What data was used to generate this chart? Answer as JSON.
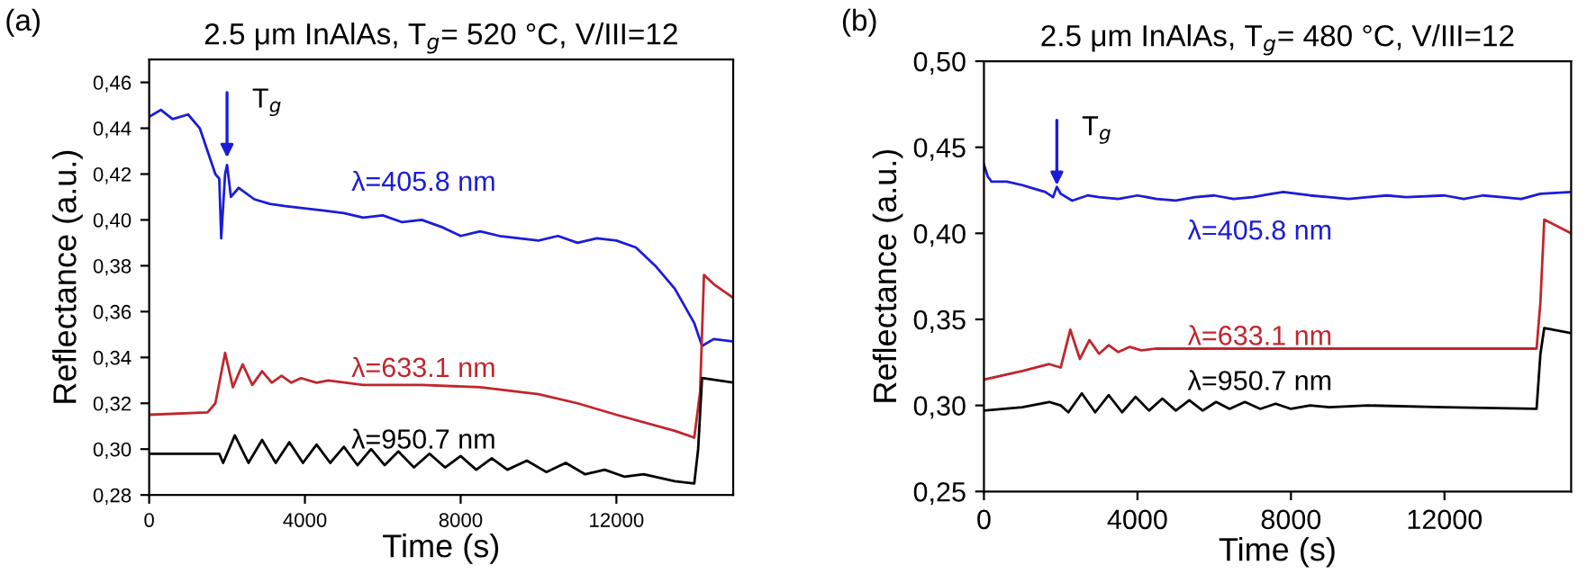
{
  "chart_data": [
    {
      "type": "line",
      "title": "2.5 μm InAlAs, T$_{g}$= 520 °C, V/III=12",
      "xlabel": "Time (s)",
      "ylabel": "Reflectance (a.u.)",
      "xlim": [
        0,
        15000
      ],
      "xticks": [
        0,
        4000,
        8000,
        12000
      ],
      "ylim": [
        0.28,
        0.47
      ],
      "yticks": [
        {
          "value": 0.28,
          "label": "0,28"
        },
        {
          "value": 0.3,
          "label": "0,30"
        },
        {
          "value": 0.32,
          "label": "0,32"
        },
        {
          "value": 0.34,
          "label": "0,34"
        },
        {
          "value": 0.36,
          "label": "0,36"
        },
        {
          "value": 0.38,
          "label": "0,38"
        },
        {
          "value": 0.4,
          "label": "0,40"
        },
        {
          "value": 0.42,
          "label": "0,42"
        },
        {
          "value": 0.44,
          "label": "0,44"
        },
        {
          "value": 0.46,
          "label": "0,46"
        }
      ],
      "grid": false,
      "legend": false,
      "marker": "none",
      "line_style": "solid",
      "annotations": [
        "(a)",
        {
          "text": "T$_{g}$",
          "x": 2000,
          "y": 0.425
        }
      ],
      "series": [
        {
          "name": "λ=405.8 nm",
          "color": "#1c1cd8",
          "x": [
            0,
            300,
            600,
            1000,
            1300,
            1500,
            1700,
            1800,
            1850,
            1950,
            2000,
            2100,
            2300,
            2700,
            3100,
            3500,
            4000,
            4500,
            5000,
            5500,
            6000,
            6500,
            7000,
            7500,
            8000,
            8500,
            9000,
            9500,
            10000,
            10500,
            11000,
            11500,
            12000,
            12500,
            13000,
            13500,
            14000,
            14200,
            14500,
            15000
          ],
          "values": [
            0.445,
            0.448,
            0.444,
            0.446,
            0.44,
            0.43,
            0.42,
            0.418,
            0.392,
            0.42,
            0.424,
            0.41,
            0.414,
            0.409,
            0.407,
            0.406,
            0.405,
            0.404,
            0.403,
            0.401,
            0.402,
            0.399,
            0.4,
            0.397,
            0.393,
            0.395,
            0.393,
            0.392,
            0.391,
            0.393,
            0.39,
            0.392,
            0.391,
            0.388,
            0.38,
            0.37,
            0.355,
            0.345,
            0.348,
            0.347
          ]
        },
        {
          "name": "λ=633.1 nm",
          "color": "#c0262d",
          "x": [
            0,
            1500,
            1700,
            1950,
            2150,
            2400,
            2650,
            2900,
            3150,
            3400,
            3650,
            3900,
            4300,
            4600,
            5500,
            7000,
            8500,
            10000,
            11000,
            12000,
            13500,
            14000,
            14150,
            14250,
            14500,
            15000
          ],
          "values": [
            0.315,
            0.316,
            0.32,
            0.342,
            0.327,
            0.337,
            0.328,
            0.334,
            0.329,
            0.332,
            0.329,
            0.331,
            0.329,
            0.33,
            0.328,
            0.328,
            0.327,
            0.324,
            0.32,
            0.315,
            0.308,
            0.305,
            0.325,
            0.376,
            0.372,
            0.366
          ]
        },
        {
          "name": "λ=950.7 nm",
          "color": "#000000",
          "x": [
            0,
            1800,
            1900,
            2200,
            2550,
            2900,
            3250,
            3600,
            3950,
            4300,
            4650,
            5000,
            5350,
            5700,
            6050,
            6400,
            6800,
            7200,
            7600,
            8000,
            8400,
            8800,
            9200,
            9700,
            10200,
            10700,
            11200,
            11700,
            12200,
            12700,
            13500,
            14000,
            14100,
            14200,
            15000
          ],
          "values": [
            0.298,
            0.298,
            0.294,
            0.306,
            0.294,
            0.304,
            0.294,
            0.303,
            0.294,
            0.302,
            0.294,
            0.301,
            0.293,
            0.3,
            0.293,
            0.299,
            0.292,
            0.298,
            0.292,
            0.297,
            0.291,
            0.296,
            0.291,
            0.295,
            0.29,
            0.294,
            0.289,
            0.291,
            0.288,
            0.289,
            0.286,
            0.285,
            0.3,
            0.331,
            0.329
          ]
        }
      ]
    },
    {
      "type": "line",
      "title": "2.5 μm InAlAs, T$_{g}$= 480 °C, V/III=12",
      "xlabel": "Time (s)",
      "ylabel": "Reflectance (a.u.)",
      "xlim": [
        0,
        15300
      ],
      "xticks": [
        0,
        4000,
        8000,
        12000
      ],
      "ylim": [
        0.25,
        0.5
      ],
      "yticks": [
        {
          "value": 0.25,
          "label": "0,25"
        },
        {
          "value": 0.3,
          "label": "0,30"
        },
        {
          "value": 0.35,
          "label": "0,35"
        },
        {
          "value": 0.4,
          "label": "0,40"
        },
        {
          "value": 0.45,
          "label": "0,45"
        },
        {
          "value": 0.5,
          "label": "0,50"
        }
      ],
      "grid": false,
      "legend": false,
      "marker": "none",
      "line_style": "solid",
      "annotations": [
        "(b)",
        {
          "text": "T$_{g}$",
          "x": 1900,
          "y": 0.425
        }
      ],
      "series": [
        {
          "name": "λ=405.8 nm",
          "color": "#1c1cd8",
          "x": [
            0,
            100,
            200,
            600,
            1000,
            1300,
            1600,
            1800,
            1900,
            2000,
            2300,
            2700,
            3000,
            3500,
            4000,
            4500,
            5000,
            5500,
            6000,
            6500,
            7000,
            7500,
            7800,
            8500,
            9000,
            9500,
            10000,
            10500,
            11000,
            12000,
            12500,
            13000,
            13500,
            14000,
            14500,
            15300
          ],
          "values": [
            0.44,
            0.433,
            0.43,
            0.43,
            0.428,
            0.426,
            0.424,
            0.421,
            0.427,
            0.423,
            0.419,
            0.422,
            0.421,
            0.42,
            0.422,
            0.42,
            0.419,
            0.421,
            0.422,
            0.42,
            0.421,
            0.423,
            0.424,
            0.422,
            0.421,
            0.42,
            0.421,
            0.422,
            0.421,
            0.422,
            0.42,
            0.422,
            0.421,
            0.42,
            0.423,
            0.424
          ]
        },
        {
          "name": "λ=633.1 nm",
          "color": "#c0262d",
          "x": [
            0,
            1000,
            1700,
            2000,
            2250,
            2500,
            2750,
            3000,
            3250,
            3500,
            3800,
            4100,
            4500,
            6000,
            10000,
            14400,
            14500,
            14600,
            15300
          ],
          "values": [
            0.315,
            0.32,
            0.324,
            0.322,
            0.344,
            0.327,
            0.338,
            0.33,
            0.335,
            0.331,
            0.334,
            0.332,
            0.333,
            0.333,
            0.333,
            0.333,
            0.36,
            0.408,
            0.4
          ]
        },
        {
          "name": "λ=950.7 nm",
          "color": "#000000",
          "x": [
            0,
            1000,
            1700,
            2000,
            2200,
            2550,
            2900,
            3250,
            3600,
            3950,
            4300,
            4650,
            5000,
            5350,
            5700,
            6050,
            6400,
            6800,
            7200,
            7600,
            8000,
            8500,
            9000,
            10000,
            12000,
            14400,
            14500,
            14600,
            15300
          ],
          "values": [
            0.297,
            0.299,
            0.302,
            0.3,
            0.296,
            0.307,
            0.296,
            0.306,
            0.296,
            0.305,
            0.297,
            0.304,
            0.297,
            0.303,
            0.297,
            0.302,
            0.298,
            0.302,
            0.298,
            0.301,
            0.298,
            0.3,
            0.299,
            0.3,
            0.299,
            0.298,
            0.33,
            0.345,
            0.342
          ]
        }
      ]
    }
  ]
}
